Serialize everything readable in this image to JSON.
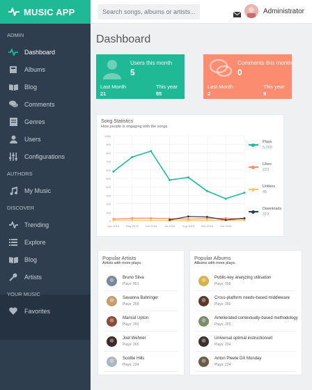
{
  "app": {
    "title": "MUSIC APP",
    "brand_color": "#1fb996"
  },
  "sidebar": {
    "sections": [
      {
        "heading": "ADMIN",
        "items": [
          {
            "label": "Dashboard",
            "icon": "dashboard-icon",
            "active": true
          },
          {
            "label": "Albums",
            "icon": "albums-icon"
          },
          {
            "label": "Blog",
            "icon": "book-icon"
          },
          {
            "label": "Comments",
            "icon": "comments-icon"
          },
          {
            "label": "Genres",
            "icon": "genres-icon"
          },
          {
            "label": "Users",
            "icon": "user-icon"
          },
          {
            "label": "Configurations",
            "icon": "sliders-icon"
          }
        ]
      },
      {
        "heading": "AUTHORS",
        "items": [
          {
            "label": "My Music",
            "icon": "music-note-icon"
          }
        ]
      },
      {
        "heading": "DISCOVER",
        "items": [
          {
            "label": "Trending",
            "icon": "trending-icon"
          },
          {
            "label": "Explore",
            "icon": "list-icon"
          },
          {
            "label": "Blog",
            "icon": "book-icon"
          },
          {
            "label": "Artists",
            "icon": "microphone-icon"
          }
        ]
      },
      {
        "heading": "YOUR MUSIC",
        "items": [
          {
            "label": "Favorites",
            "icon": "heart-icon"
          }
        ]
      }
    ]
  },
  "topbar": {
    "search_placeholder": "Search songs, albums or artists...",
    "user_name": "Administrator"
  },
  "page": {
    "title": "Dashboard"
  },
  "stats": {
    "users": {
      "label": "Users this month",
      "value": "5",
      "last_month_label": "Last Month",
      "last_month": "21",
      "this_year_label": "This year",
      "this_year": "55",
      "color": "#1fb996"
    },
    "comments": {
      "label": "Comments this month",
      "value": "0",
      "last_month_label": "Last Month",
      "last_month": "2",
      "this_year_label": "This year",
      "this_year": "9",
      "color": "#fb8c6f"
    }
  },
  "chart": {
    "title": "Song Statistics",
    "subtitle": "How people is engaging with the songs."
  },
  "chart_data": {
    "type": "line",
    "x": [
      "Apr 2018",
      "May 2018",
      "Jun 2018",
      "Jul 2018",
      "Aug 2018",
      "Sep 2018",
      "Oct 2018",
      "Nov 2018"
    ],
    "tick_labels": [
      "Apr 2018",
      "May 2018",
      "Jun 2018",
      "Jul 2018",
      "Aug 2018",
      "Sep 2018",
      "Oct 2018"
    ],
    "ylim": [
      0,
      1000
    ],
    "yticks": [
      0,
      100,
      200,
      300,
      400,
      500,
      600,
      700,
      800,
      900,
      1000
    ],
    "grid": true,
    "legend_position": "right",
    "series": [
      {
        "name": "Plays",
        "total": "5,390",
        "color": "#1fb996",
        "values": [
          580,
          750,
          820,
          480,
          510,
          350,
          260,
          330
        ]
      },
      {
        "name": "Likes",
        "total": "223",
        "color": "#fb8c6f",
        "values": [
          20,
          30,
          30,
          25,
          20,
          25,
          30,
          20
        ]
      },
      {
        "name": "Unlikes",
        "total": "45",
        "color": "#f5c96b",
        "values": [
          5,
          8,
          5,
          3,
          2,
          5,
          5,
          3
        ]
      },
      {
        "name": "Downloads",
        "total": "319",
        "color": "#2f3e4e",
        "values": [
          null,
          null,
          null,
          10,
          50,
          45,
          10,
          30
        ]
      }
    ]
  },
  "artists": {
    "title": "Popular Artists",
    "subtitle": "Artists with more plays.",
    "items": [
      {
        "name": "Bruno Silva",
        "plays": "Plays: 851",
        "color": "#7a8799"
      },
      {
        "name": "Savanna Bahringer",
        "plays": "Plays: 358",
        "color": "#c99b6d"
      },
      {
        "name": "Marisol Upton",
        "plays": "Plays: 350",
        "color": "#8b4a3a"
      },
      {
        "name": "Joel Wehner",
        "plays": "Plays: 265",
        "color": "#3a2a2a"
      },
      {
        "name": "Scottie Hills",
        "plays": "Plays: 234",
        "color": "#b0b6be"
      }
    ]
  },
  "albums": {
    "title": "Popular Albums",
    "subtitle": "Albums with more plays.",
    "items": [
      {
        "name": "Public-key analyzing utilisation",
        "plays": "Plays: 358",
        "color": "#d6b24a"
      },
      {
        "name": "Cross-platform needs-based middleware",
        "plays": "Plays: 350",
        "color": "#5a3a2a"
      },
      {
        "name": "Ameliorated contextually-based methodology",
        "plays": "Plays: 265",
        "color": "#7a8a6a"
      },
      {
        "name": "Universal optimal instructionset",
        "plays": "Plays: 234",
        "color": "#3a3030"
      },
      {
        "name": "Anton Pleete DX Monday",
        "plays": "Plays: 234",
        "color": "#6a5a4a"
      }
    ]
  }
}
